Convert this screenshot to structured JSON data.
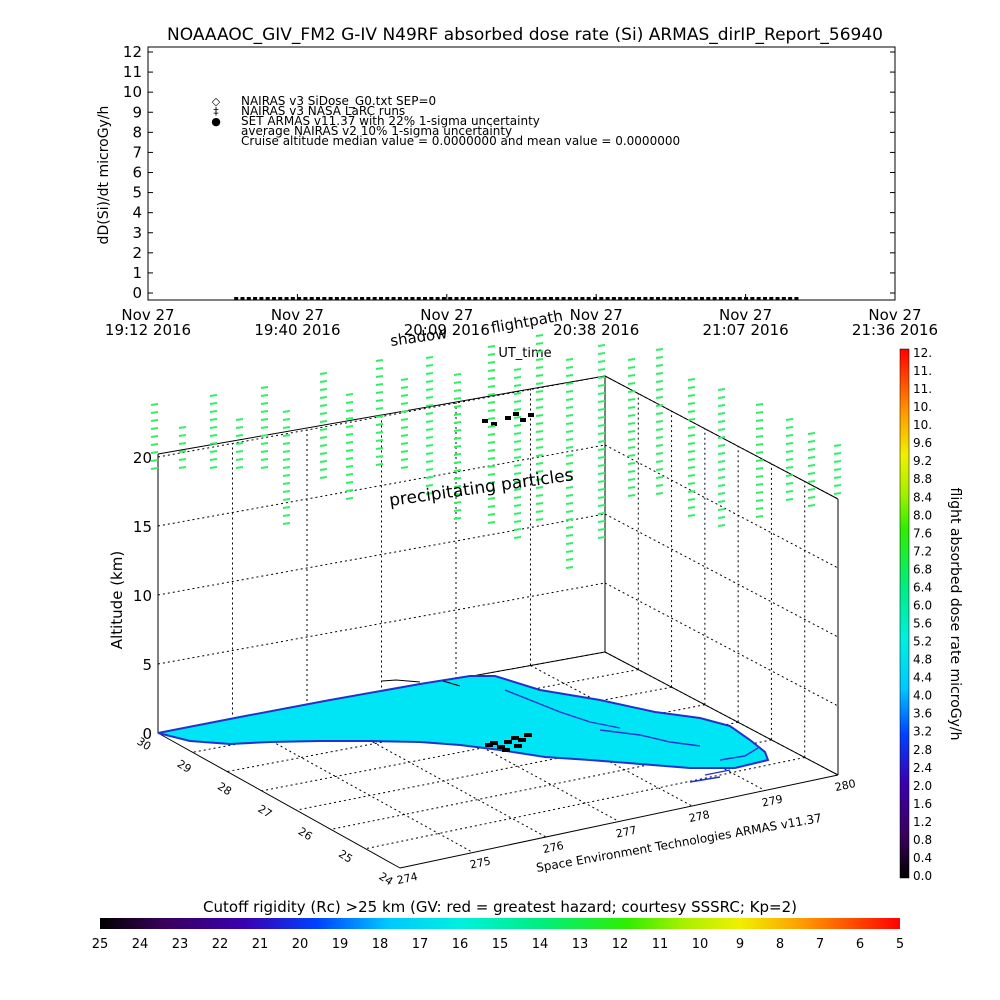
{
  "title": "NOAAAOC_GIV_FM2 G-IV    N49RF  absorbed dose rate (Si) ARMAS_dirIP_Report_56940",
  "colors": {
    "background": "#ffffff",
    "ink": "#000000",
    "ocean_land": "#00e5f5",
    "coast": "#2233cc",
    "precip": "#33ee66",
    "flightpath": "#000000"
  },
  "chart_data": [
    {
      "id": "time-series",
      "type": "scatter",
      "title": "NOAAAOC_GIV_FM2 G-IV    N49RF  absorbed dose rate (Si) ARMAS_dirIP_Report_56940",
      "xlabel": "UT_time",
      "ylabel": "dD(Si)/dt microGy/h",
      "ylim": [
        0,
        12
      ],
      "y_ticks": [
        "0",
        "1",
        "2",
        "3",
        "4",
        "5",
        "6",
        "7",
        "8",
        "9",
        "10",
        "11",
        "12"
      ],
      "x_ticks": [
        {
          "top": "Nov 27",
          "bottom": "19:12 2016"
        },
        {
          "top": "Nov 27",
          "bottom": "19:40 2016"
        },
        {
          "top": "Nov 27",
          "bottom": "20:09 2016"
        },
        {
          "top": "Nov 27",
          "bottom": "20:38 2016"
        },
        {
          "top": "Nov 27",
          "bottom": "21:07 2016"
        },
        {
          "top": "Nov 27",
          "bottom": "21:36 2016"
        }
      ],
      "xlim_minutes": [
        0,
        144
      ],
      "grid": false,
      "legend": [
        {
          "symbol": "◇",
          "text": "NAIRAS v3 SiDose_G0.txt SEP=0"
        },
        {
          "symbol": "‡",
          "text": "NAIRAS v3 NASA LaRC runs"
        },
        {
          "symbol": "●",
          "text": "SET ARMAS v11.37 with 22% 1-sigma uncertainty"
        },
        {
          "symbol": "",
          "text": "average NAIRAS v2 10% 1-sigma uncertainty"
        },
        {
          "symbol": "",
          "text": "Cruise altitude median value = 0.0000000 and mean value = 0.0000000"
        }
      ],
      "series": [
        {
          "name": "SET ARMAS v11.37 with 22% 1-sigma uncertainty",
          "x_range_minutes": [
            17,
            125
          ],
          "samples": 90,
          "value": 0.0
        }
      ]
    },
    {
      "id": "perspective-3d",
      "type": "scatter",
      "zlabel": "Altitude (km)",
      "z_ticks": [
        "0",
        "5",
        "10",
        "15",
        "20"
      ],
      "zlim": [
        0,
        20
      ],
      "lat_ticks": [
        "24",
        "25",
        "26",
        "27",
        "28",
        "29",
        "30"
      ],
      "lon_ticks": [
        "274",
        "275",
        "276",
        "277",
        "278",
        "279",
        "280"
      ],
      "annotations": {
        "shadow": "shadow",
        "flightpath": "flightpath",
        "precip": "precipitating particles",
        "credit": "Space Environment Technologies ARMAS v11.37"
      }
    }
  ],
  "right_colorbar": {
    "label": "flight absorbed dose rate microGy/h",
    "ticks": [
      "0.0",
      "0.4",
      "0.8",
      "1.2",
      "1.6",
      "2.0",
      "2.4",
      "2.8",
      "3.2",
      "3.6",
      "4.0",
      "4.4",
      "4.8",
      "5.2",
      "5.6",
      "6.0",
      "6.4",
      "6.8",
      "7.2",
      "7.6",
      "8.0",
      "8.4",
      "8.8",
      "9.2",
      "9.6",
      "10.",
      "10.",
      "11.",
      "11.",
      "12."
    ]
  },
  "bottom_colorbar": {
    "label": "Cutoff rigidity (Rc) >25 km (GV: red = greatest hazard; courtesy SSSRC; Kp=2)",
    "ticks": [
      "25",
      "24",
      "23",
      "22",
      "21",
      "20",
      "19",
      "18",
      "17",
      "16",
      "15",
      "14",
      "13",
      "12",
      "11",
      "10",
      "9",
      "8",
      "7",
      "6",
      "5"
    ]
  }
}
